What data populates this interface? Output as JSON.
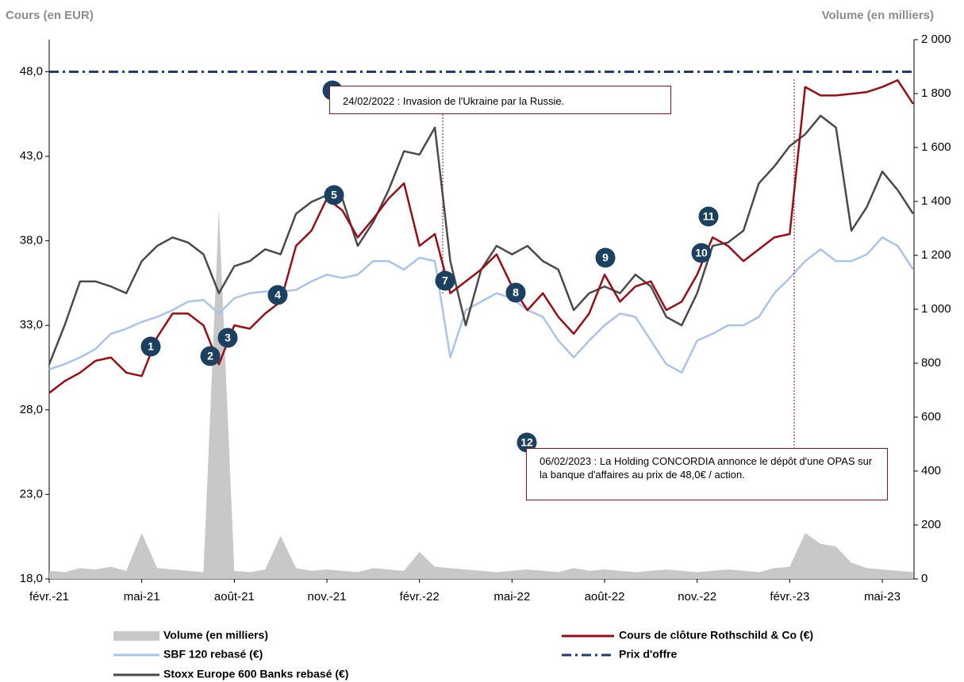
{
  "chart_data": {
    "type": "line",
    "y_label": "Cours (en EUR)",
    "y2_label": "Volume (en milliers)",
    "categories": [
      "févr.-21",
      null,
      null,
      null,
      null,
      null,
      "mai-21",
      null,
      null,
      null,
      null,
      null,
      "août-21",
      null,
      null,
      null,
      null,
      null,
      "nov.-21",
      null,
      null,
      null,
      null,
      null,
      "févr.-22",
      null,
      null,
      null,
      null,
      null,
      "mai-22",
      null,
      null,
      null,
      null,
      null,
      "août-22",
      null,
      null,
      null,
      null,
      null,
      "nov.-22",
      null,
      null,
      null,
      null,
      null,
      "févr.-23",
      null,
      null,
      null,
      null,
      null,
      "mai-23",
      null,
      null
    ],
    "ylim": [
      18,
      49.9
    ],
    "yticks": [
      {
        "value": 18,
        "label": "18,0"
      },
      {
        "value": 23,
        "label": "23,0"
      },
      {
        "value": 28,
        "label": "28,0"
      },
      {
        "value": 33,
        "label": "33,0"
      },
      {
        "value": 38,
        "label": "38,0"
      },
      {
        "value": 43,
        "label": "43,0"
      },
      {
        "value": 48,
        "label": "48,0"
      }
    ],
    "y2lim": [
      0,
      2000
    ],
    "y2ticks": [
      0,
      200,
      400,
      600,
      800,
      {
        "value": 1000,
        "label": "1 000"
      },
      {
        "value": 1200,
        "label": "1 200"
      },
      {
        "value": 1400,
        "label": "1 400"
      },
      {
        "value": 1600,
        "label": "1 600"
      },
      {
        "value": 1800,
        "label": "1 800"
      },
      {
        "value": 2000,
        "label": "2 000"
      }
    ],
    "series": [
      {
        "name": "Volume (en milliers)",
        "type": "area",
        "axis": "y2",
        "color": "#c8c8c8",
        "values": [
          30,
          25,
          40,
          35,
          45,
          30,
          170,
          40,
          35,
          30,
          25,
          1370,
          30,
          25,
          35,
          160,
          40,
          30,
          35,
          30,
          25,
          40,
          35,
          30,
          100,
          45,
          40,
          35,
          30,
          25,
          30,
          35,
          30,
          25,
          40,
          30,
          35,
          30,
          25,
          30,
          35,
          30,
          25,
          30,
          35,
          30,
          25,
          40,
          45,
          170,
          130,
          120,
          60,
          40,
          35,
          30,
          25
        ]
      },
      {
        "name": "SBF 120 rebasé (€)",
        "color": "#a9c4ec",
        "values": [
          30.4,
          30.7,
          31.1,
          31.6,
          32.5,
          32.8,
          33.2,
          33.5,
          33.9,
          34.4,
          34.5,
          33.7,
          34.6,
          34.9,
          35.0,
          35.0,
          35.1,
          35.6,
          36.0,
          35.8,
          36.0,
          36.8,
          36.8,
          36.3,
          37.0,
          36.8,
          31.1,
          33.9,
          34.4,
          34.9,
          34.6,
          33.9,
          33.5,
          32.1,
          31.1,
          32.1,
          33.0,
          33.7,
          33.5,
          32.1,
          30.7,
          30.2,
          32.1,
          32.5,
          33.0,
          33.0,
          33.5,
          34.9,
          35.8,
          36.8,
          37.5,
          36.8,
          36.8,
          37.2,
          38.2,
          37.7,
          36.3
        ]
      },
      {
        "name": "Stoxx Europe 600 Banks rebasé (€)",
        "color": "#4a4a4a",
        "values": [
          30.7,
          33.0,
          35.6,
          35.6,
          35.3,
          34.9,
          36.8,
          37.7,
          38.2,
          37.9,
          37.2,
          34.9,
          36.5,
          36.8,
          37.5,
          37.2,
          39.6,
          40.3,
          40.7,
          40.5,
          37.7,
          39.1,
          41.0,
          43.3,
          43.1,
          44.7,
          36.8,
          33.0,
          36.3,
          37.7,
          37.2,
          37.7,
          36.8,
          36.3,
          33.9,
          34.9,
          35.3,
          34.9,
          36.0,
          35.3,
          33.5,
          33.0,
          34.9,
          37.7,
          37.9,
          38.6,
          41.4,
          42.4,
          43.6,
          44.3,
          45.4,
          44.7,
          38.6,
          40.0,
          42.1,
          41.0,
          39.6
        ]
      },
      {
        "name": "Cours de clôture Rothschild & Co (€)",
        "color": "#9b0d14",
        "values": [
          29.0,
          29.7,
          30.2,
          30.9,
          31.1,
          30.2,
          30.0,
          32.3,
          33.7,
          33.7,
          33.0,
          30.7,
          33.0,
          32.8,
          33.7,
          34.4,
          37.7,
          38.6,
          40.5,
          39.8,
          38.2,
          39.3,
          40.5,
          41.4,
          37.7,
          38.4,
          34.9,
          35.6,
          36.3,
          37.2,
          35.3,
          33.9,
          34.9,
          33.5,
          32.5,
          33.7,
          36.0,
          34.4,
          35.3,
          35.6,
          33.9,
          34.4,
          36.0,
          38.2,
          37.7,
          36.8,
          37.5,
          38.2,
          38.4,
          47.1,
          46.6,
          46.6,
          46.7,
          46.8,
          47.1,
          47.5,
          46.1
        ]
      }
    ],
    "hline": {
      "name": "Prix d'offre",
      "value": 48,
      "color": "#1f3d6e"
    },
    "markers": [
      "1",
      "2",
      "3",
      "4",
      "5",
      "6",
      "7",
      "8",
      "9",
      "10",
      "11",
      "12"
    ],
    "annotations": [
      "24/02/2022 : Invasion de l'Ukraine par la Russie.",
      "06/02/2023 : La Holding CONCORDIA annonce le dépôt d'une OPAS sur la banque d'affaires au prix de 48,0€ / action."
    ]
  }
}
